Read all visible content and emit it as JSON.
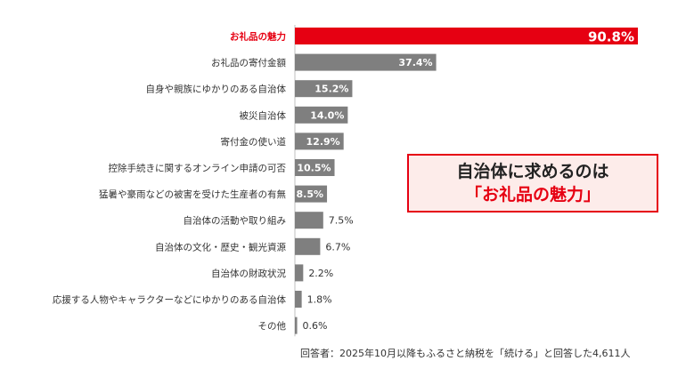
{
  "chart_data": {
    "type": "bar",
    "orientation": "horizontal",
    "categories": [
      "お礼品の魅力",
      "お礼品の寄付金額",
      "自身や親族にゆかりのある自治体",
      "被災自治体",
      "寄付金の使い道",
      "控除手続きに関するオンライン申請の可否",
      "猛暑や豪雨などの被害を受けた生産者の有無",
      "自治体の活動や取り組み",
      "自治体の文化・歴史・観光資源",
      "自治体の財政状況",
      "応援する人物やキャラクターなどにゆかりのある自治体",
      "その他"
    ],
    "values": [
      90.8,
      37.4,
      15.2,
      14.0,
      12.9,
      10.5,
      8.5,
      7.5,
      6.7,
      2.2,
      1.8,
      0.6
    ],
    "value_labels": [
      "90.8%",
      "37.4%",
      "15.2%",
      "14.0%",
      "12.9%",
      "10.5%",
      "8.5%",
      "7.5%",
      "6.7%",
      "2.2%",
      "1.8%",
      "0.6%"
    ],
    "unit": "%",
    "xlim": [
      0,
      100
    ],
    "highlight_index": 0,
    "colors": {
      "highlight": "#e60012",
      "default": "#7f7f7f",
      "label_default": "#333333"
    },
    "grid": false,
    "legend": "none"
  },
  "callout": {
    "line1": "自治体に求めるのは",
    "line2": "「お礼品の魅力」"
  },
  "footnote": "回答者：2025年10月以降もふるさと納税を「続ける」と回答した4,611人"
}
